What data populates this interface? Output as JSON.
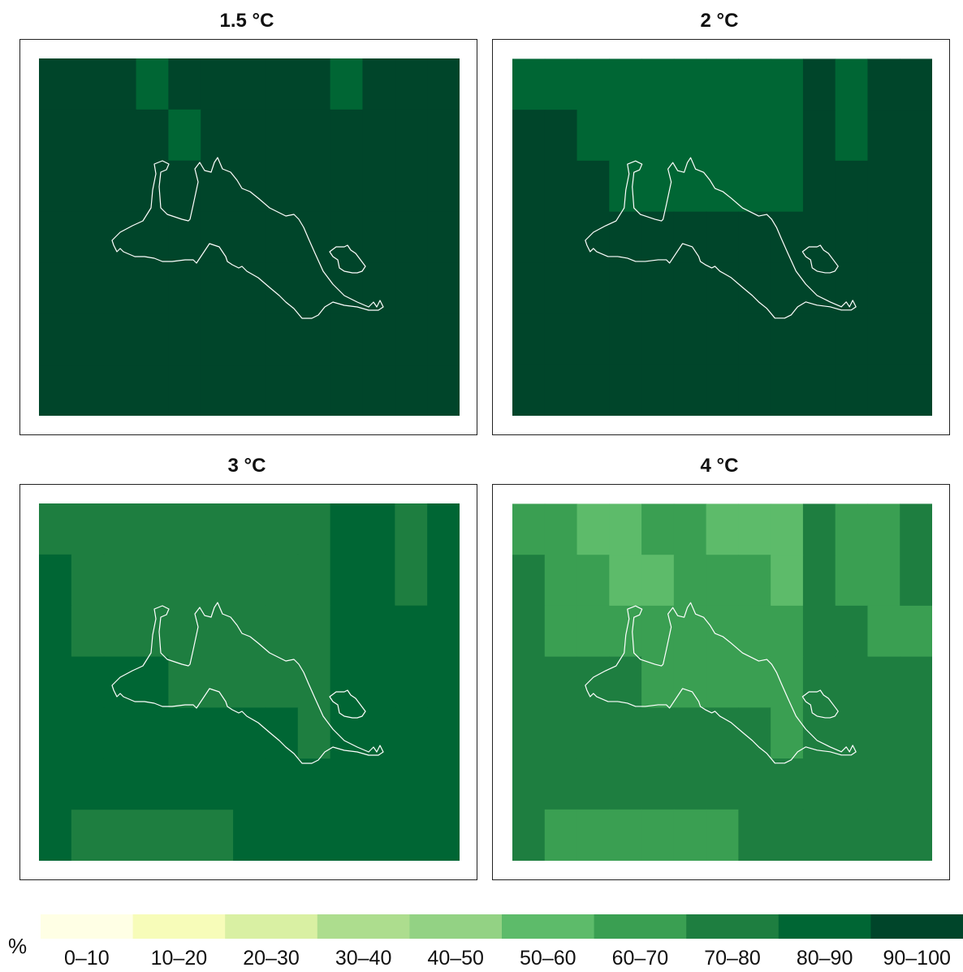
{
  "panels": [
    {
      "title": "1.5 °C",
      "grid": [
        [
          9,
          9,
          9,
          8,
          9,
          9,
          9,
          9,
          9,
          8,
          9,
          9,
          9
        ],
        [
          9,
          9,
          9,
          9,
          8,
          9,
          9,
          9,
          9,
          9,
          9,
          9,
          9
        ],
        [
          9,
          9,
          9,
          9,
          9,
          9,
          9,
          9,
          9,
          9,
          9,
          9,
          9
        ],
        [
          9,
          9,
          9,
          9,
          9,
          9,
          9,
          9,
          9,
          9,
          9,
          9,
          9
        ],
        [
          9,
          9,
          9,
          9,
          9,
          9,
          9,
          9,
          9,
          9,
          9,
          9,
          9
        ],
        [
          9,
          9,
          9,
          9,
          9,
          9,
          9,
          9,
          9,
          9,
          9,
          9,
          9
        ],
        [
          9,
          9,
          9,
          9,
          9,
          9,
          9,
          9,
          9,
          9,
          9,
          9,
          9
        ]
      ]
    },
    {
      "title": "2 °C",
      "grid": [
        [
          8,
          8,
          8,
          8,
          8,
          8,
          8,
          8,
          8,
          9,
          8,
          9,
          9
        ],
        [
          9,
          9,
          8,
          8,
          8,
          8,
          8,
          8,
          8,
          9,
          8,
          9,
          9
        ],
        [
          9,
          9,
          9,
          8,
          8,
          8,
          8,
          8,
          8,
          9,
          9,
          9,
          9
        ],
        [
          9,
          9,
          9,
          9,
          9,
          9,
          9,
          9,
          9,
          9,
          9,
          9,
          9
        ],
        [
          9,
          9,
          9,
          9,
          9,
          9,
          9,
          9,
          9,
          9,
          9,
          9,
          9
        ],
        [
          9,
          9,
          9,
          9,
          9,
          9,
          9,
          9,
          9,
          9,
          9,
          9,
          9
        ],
        [
          9,
          9,
          9,
          9,
          9,
          9,
          9,
          9,
          9,
          9,
          9,
          9,
          9
        ]
      ]
    },
    {
      "title": "3 °C",
      "grid": [
        [
          7,
          7,
          7,
          7,
          7,
          7,
          7,
          7,
          7,
          8,
          8,
          7,
          8
        ],
        [
          8,
          7,
          7,
          7,
          7,
          7,
          7,
          7,
          7,
          8,
          8,
          7,
          8
        ],
        [
          8,
          7,
          7,
          7,
          7,
          7,
          7,
          7,
          7,
          8,
          8,
          8,
          8
        ],
        [
          8,
          8,
          8,
          8,
          7,
          7,
          7,
          7,
          7,
          8,
          8,
          8,
          8
        ],
        [
          8,
          8,
          8,
          8,
          8,
          8,
          8,
          8,
          7,
          8,
          8,
          8,
          8
        ],
        [
          8,
          8,
          8,
          8,
          8,
          8,
          8,
          8,
          8,
          8,
          8,
          8,
          8
        ],
        [
          8,
          7,
          7,
          7,
          7,
          7,
          8,
          8,
          8,
          8,
          8,
          8,
          8
        ]
      ]
    },
    {
      "title": "4 °C",
      "grid": [
        [
          6,
          6,
          5,
          5,
          6,
          6,
          5,
          5,
          5,
          7,
          6,
          6,
          7
        ],
        [
          7,
          6,
          6,
          5,
          5,
          6,
          6,
          6,
          5,
          7,
          6,
          6,
          7
        ],
        [
          7,
          6,
          6,
          6,
          6,
          6,
          6,
          6,
          6,
          7,
          7,
          6,
          6
        ],
        [
          7,
          7,
          7,
          7,
          6,
          6,
          6,
          6,
          6,
          7,
          7,
          7,
          7
        ],
        [
          7,
          7,
          7,
          7,
          7,
          7,
          7,
          7,
          6,
          7,
          7,
          7,
          7
        ],
        [
          7,
          7,
          7,
          7,
          7,
          7,
          7,
          7,
          7,
          7,
          7,
          7,
          7
        ],
        [
          7,
          6,
          6,
          6,
          6,
          6,
          6,
          7,
          7,
          7,
          7,
          7,
          7
        ]
      ]
    }
  ],
  "legend": {
    "unit": "%",
    "classes": [
      {
        "label": "0–10",
        "color": "#ffffe5"
      },
      {
        "label": "10–20",
        "color": "#f7fcb9"
      },
      {
        "label": "20–30",
        "color": "#d9f0a3"
      },
      {
        "label": "30–40",
        "color": "#addd8e"
      },
      {
        "label": "40–50",
        "color": "#93d284"
      },
      {
        "label": "50–60",
        "color": "#5dbb6a"
      },
      {
        "label": "60–70",
        "color": "#3a9f52"
      },
      {
        "label": "70–80",
        "color": "#1e7e40"
      },
      {
        "label": "80–90",
        "color": "#006634"
      },
      {
        "label": "90–100",
        "color": "#00452a"
      }
    ]
  },
  "outline_color": "#ffffff"
}
